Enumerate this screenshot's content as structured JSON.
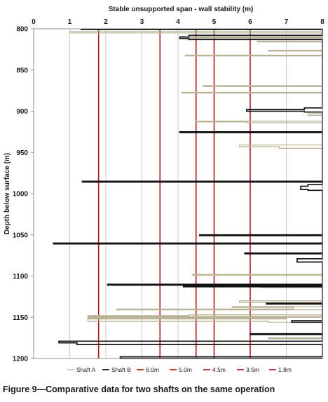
{
  "chart_data": {
    "type": "step-line",
    "title": "Stable unsupported span - wall stability (m)",
    "xlabel": "Stable unsupported span - wall stability (m)",
    "ylabel": "Depth below surface (m)",
    "xlim": [
      0,
      8
    ],
    "ylim": [
      800,
      1200
    ],
    "y_inverted": true,
    "x_axis_position": "top",
    "x_ticks": [
      "0",
      "1",
      "2",
      "3",
      "4",
      "5",
      "6",
      "7",
      "8"
    ],
    "y_ticks": [
      "800",
      "850",
      "900",
      "950",
      "1000",
      "1050",
      "1100",
      "1150",
      "1200"
    ],
    "grid": "vertical",
    "legend_position": "bottom",
    "legend": [
      "Shaft A",
      "Shaft B",
      "6.0m",
      "5.0m",
      "4.5m",
      "3.5m",
      "1.8m"
    ],
    "reference_lines": [
      {
        "name": "6.0m",
        "x": 6.0,
        "color": "#b01818"
      },
      {
        "name": "5.0m",
        "x": 5.0,
        "color": "#b01818"
      },
      {
        "name": "4.5m",
        "x": 4.5,
        "color": "#b01818"
      },
      {
        "name": "3.5m",
        "x": 3.5,
        "color": "#b01818"
      },
      {
        "name": "1.8m",
        "x": 1.8,
        "color": "#b01818"
      }
    ],
    "series": [
      {
        "name": "Shaft A",
        "color": "#b8b394",
        "points": [
          [
            8,
            803
          ],
          [
            1.0,
            803
          ],
          [
            1.0,
            805
          ],
          [
            8,
            805
          ],
          [
            8,
            810
          ],
          [
            4.3,
            810
          ],
          [
            4.3,
            811
          ],
          [
            8,
            811
          ],
          [
            8,
            815
          ],
          [
            6.2,
            815
          ],
          [
            6.2,
            816
          ],
          [
            8,
            816
          ],
          [
            8,
            826
          ],
          [
            6.5,
            826
          ],
          [
            6.5,
            827
          ],
          [
            8,
            827
          ],
          [
            8,
            832
          ],
          [
            4.2,
            832
          ],
          [
            4.2,
            833
          ],
          [
            8,
            833
          ],
          [
            8,
            869
          ],
          [
            4.7,
            869
          ],
          [
            4.7,
            870
          ],
          [
            8,
            870
          ],
          [
            8,
            877
          ],
          [
            4.1,
            877
          ],
          [
            4.1,
            878
          ],
          [
            8,
            878
          ],
          [
            8,
            903
          ],
          [
            7.6,
            903
          ],
          [
            7.6,
            905
          ],
          [
            8,
            905
          ],
          [
            8,
            912
          ],
          [
            4.5,
            912
          ],
          [
            4.5,
            913
          ],
          [
            5.9,
            913
          ],
          [
            5.9,
            914
          ],
          [
            8,
            914
          ],
          [
            8,
            941
          ],
          [
            5.7,
            941
          ],
          [
            5.7,
            943
          ],
          [
            6.8,
            943
          ],
          [
            6.8,
            945
          ],
          [
            8,
            945
          ],
          [
            8,
            1098
          ],
          [
            4.4,
            1098
          ],
          [
            4.4,
            1099
          ],
          [
            8,
            1099
          ],
          [
            8,
            1113
          ],
          [
            6.3,
            1113
          ],
          [
            6.3,
            1114
          ],
          [
            8,
            1114
          ],
          [
            8,
            1130
          ],
          [
            5.7,
            1130
          ],
          [
            5.7,
            1132
          ],
          [
            8,
            1132
          ],
          [
            8,
            1137
          ],
          [
            5.5,
            1137
          ],
          [
            5.5,
            1138
          ],
          [
            7.2,
            1138
          ],
          [
            7.2,
            1140
          ],
          [
            2.3,
            1140
          ],
          [
            2.3,
            1141
          ],
          [
            8,
            1141
          ],
          [
            8,
            1147
          ],
          [
            4.3,
            1147
          ],
          [
            4.3,
            1148
          ],
          [
            1.5,
            1148
          ],
          [
            1.5,
            1149
          ],
          [
            8,
            1149
          ],
          [
            8,
            1150
          ],
          [
            1.5,
            1150
          ],
          [
            1.5,
            1151
          ],
          [
            7.0,
            1151
          ],
          [
            7.0,
            1152
          ],
          [
            1.5,
            1152
          ],
          [
            1.5,
            1155
          ],
          [
            6.5,
            1155
          ],
          [
            6.5,
            1156
          ],
          [
            8,
            1156
          ],
          [
            8,
            1175
          ],
          [
            6.5,
            1175
          ],
          [
            6.5,
            1176
          ],
          [
            8,
            1176
          ]
        ]
      },
      {
        "name": "Shaft B",
        "color": "#111111",
        "points": [
          [
            1.3,
            801
          ],
          [
            8,
            801
          ],
          [
            8,
            808
          ],
          [
            4.3,
            808
          ],
          [
            4.3,
            810
          ],
          [
            4.05,
            810
          ],
          [
            4.05,
            812
          ],
          [
            4.3,
            812
          ],
          [
            4.3,
            813
          ],
          [
            8,
            813
          ],
          [
            8,
            896
          ],
          [
            7.5,
            896
          ],
          [
            7.5,
            898
          ],
          [
            5.9,
            898
          ],
          [
            5.9,
            900
          ],
          [
            7.5,
            900
          ],
          [
            7.5,
            901
          ],
          [
            8,
            901
          ],
          [
            8,
            925
          ],
          [
            4.05,
            925
          ],
          [
            4.05,
            926
          ],
          [
            8,
            926
          ],
          [
            8,
            985
          ],
          [
            1.35,
            985
          ],
          [
            1.35,
            986
          ],
          [
            8,
            986
          ],
          [
            8,
            989
          ],
          [
            7.6,
            989
          ],
          [
            7.6,
            991
          ],
          [
            7.4,
            991
          ],
          [
            7.4,
            995
          ],
          [
            7.6,
            995
          ],
          [
            7.6,
            996
          ],
          [
            8,
            996
          ],
          [
            8,
            1050
          ],
          [
            4.6,
            1050
          ],
          [
            4.6,
            1051
          ],
          [
            8,
            1051
          ],
          [
            8,
            1060
          ],
          [
            0.55,
            1060
          ],
          [
            0.55,
            1061
          ],
          [
            8,
            1061
          ],
          [
            8,
            1072
          ],
          [
            5.85,
            1072
          ],
          [
            5.85,
            1073
          ],
          [
            8,
            1073
          ],
          [
            8,
            1079
          ],
          [
            7.3,
            1079
          ],
          [
            7.3,
            1083
          ],
          [
            8,
            1083
          ],
          [
            8,
            1110
          ],
          [
            2.05,
            1110
          ],
          [
            2.05,
            1111
          ],
          [
            8,
            1111
          ],
          [
            8,
            1112
          ],
          [
            4.15,
            1112
          ],
          [
            4.15,
            1113
          ],
          [
            8,
            1113
          ],
          [
            8,
            1133
          ],
          [
            6.45,
            1133
          ],
          [
            6.45,
            1134
          ],
          [
            8,
            1134
          ],
          [
            8,
            1154
          ],
          [
            7.15,
            1154
          ],
          [
            7.15,
            1156
          ],
          [
            8,
            1156
          ],
          [
            8,
            1170
          ],
          [
            6.0,
            1170
          ],
          [
            6.0,
            1171
          ],
          [
            8,
            1171
          ],
          [
            8,
            1179
          ],
          [
            0.7,
            1179
          ],
          [
            0.7,
            1181
          ],
          [
            1.2,
            1181
          ],
          [
            1.2,
            1183
          ],
          [
            8,
            1183
          ],
          [
            8,
            1198
          ],
          [
            2.4,
            1198
          ],
          [
            2.4,
            1200
          ],
          [
            8,
            1200
          ]
        ]
      }
    ]
  },
  "caption": "Figure 9—Comparative data for two shafts on the same operation"
}
